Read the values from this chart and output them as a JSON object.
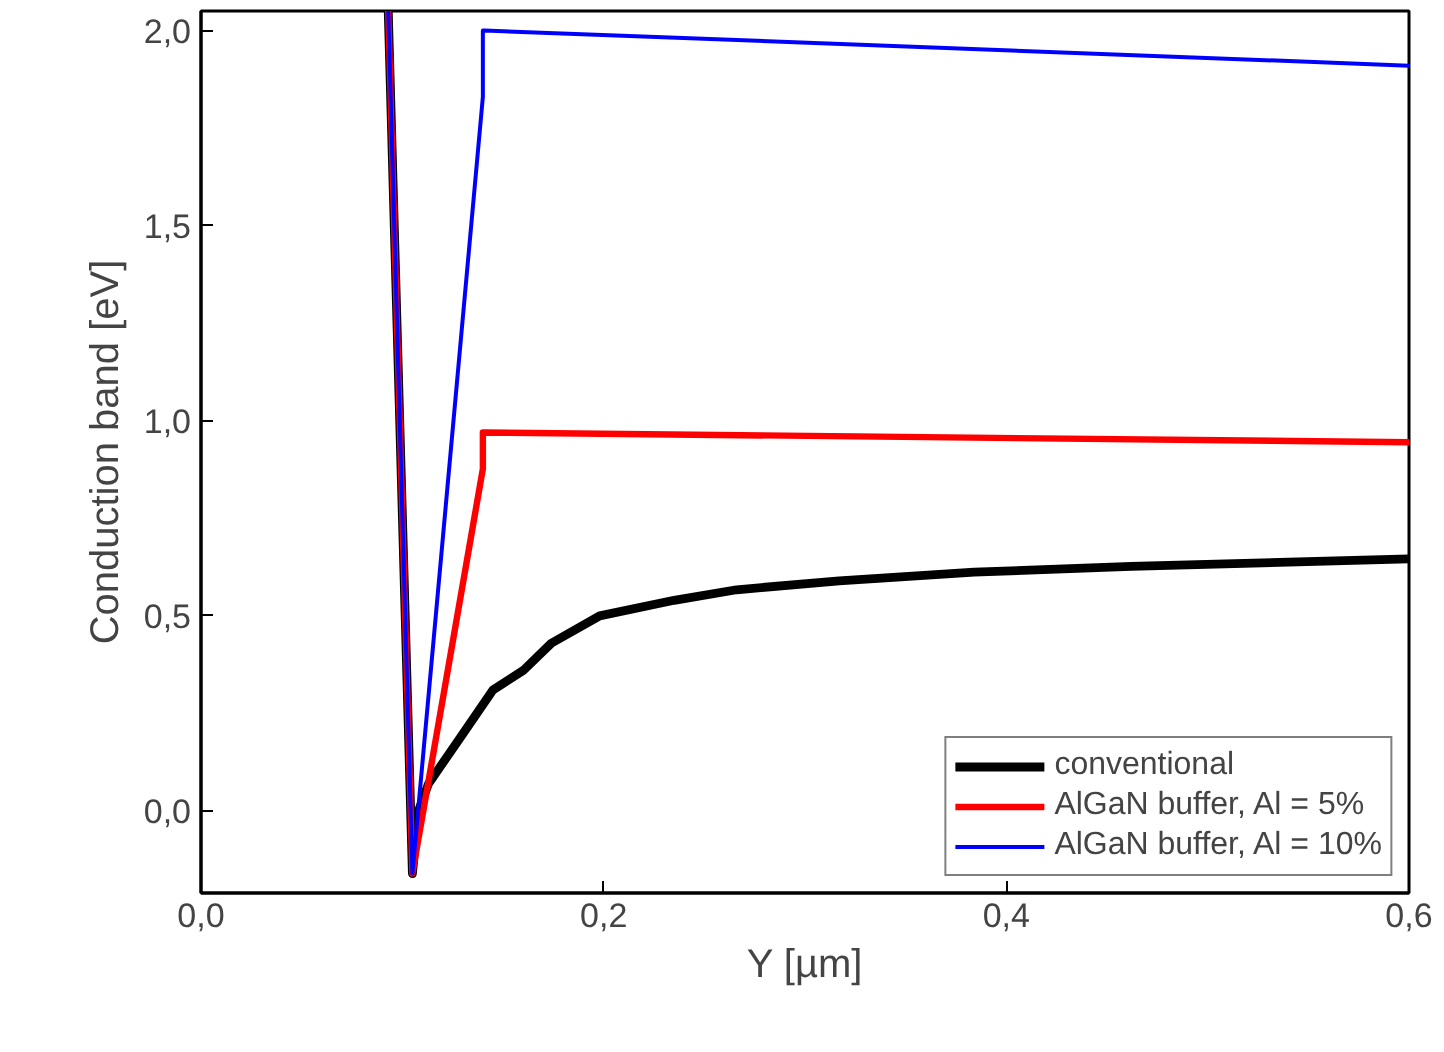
{
  "chart_data": {
    "type": "line",
    "xlabel": "Y [µm]",
    "ylabel": "Conduction band [eV]",
    "xlim": [
      0,
      0.6
    ],
    "ylim": [
      -0.21,
      2.05
    ],
    "xticks": [
      {
        "value": 0,
        "label": "0,0"
      },
      {
        "value": 0.2,
        "label": "0,2"
      },
      {
        "value": 0.4,
        "label": "0,4"
      },
      {
        "value": 0.6,
        "label": "0,6"
      }
    ],
    "yticks": [
      {
        "value": 0,
        "label": "0,0"
      },
      {
        "value": 0.5,
        "label": "0,5"
      },
      {
        "value": 1.0,
        "label": "1,0"
      },
      {
        "value": 1.5,
        "label": "1,5"
      },
      {
        "value": 2.0,
        "label": "2,0"
      }
    ],
    "grid": false,
    "legend": "bottom right",
    "line_style": "solid",
    "marker": "none",
    "series": [
      {
        "name": "conventional",
        "color": "#000000",
        "x": [
          0.093,
          0.105,
          0.108,
          0.113,
          0.129,
          0.145,
          0.16,
          0.174,
          0.198,
          0.235,
          0.266,
          0.317,
          0.384,
          0.462,
          0.6
        ],
        "values": [
          2.05,
          -0.16,
          0.0,
          0.07,
          0.19,
          0.31,
          0.36,
          0.43,
          0.5,
          0.54,
          0.567,
          0.59,
          0.612,
          0.627,
          0.646
        ]
      },
      {
        "name": "AlGaN buffer, Al = 5%",
        "color": "#ff0000",
        "x": [
          0.093,
          0.105,
          0.14,
          0.14,
          0.141,
          0.6
        ],
        "values": [
          2.05,
          -0.16,
          0.877,
          0.97,
          0.97,
          0.945
        ]
      },
      {
        "name": "AlGaN buffer, Al = 10%",
        "color": "#0000ff",
        "x": [
          0.093,
          0.105,
          0.14,
          0.14,
          0.141,
          0.6
        ],
        "values": [
          2.05,
          -0.16,
          1.83,
          2.0,
          2.0,
          1.91
        ]
      }
    ]
  }
}
